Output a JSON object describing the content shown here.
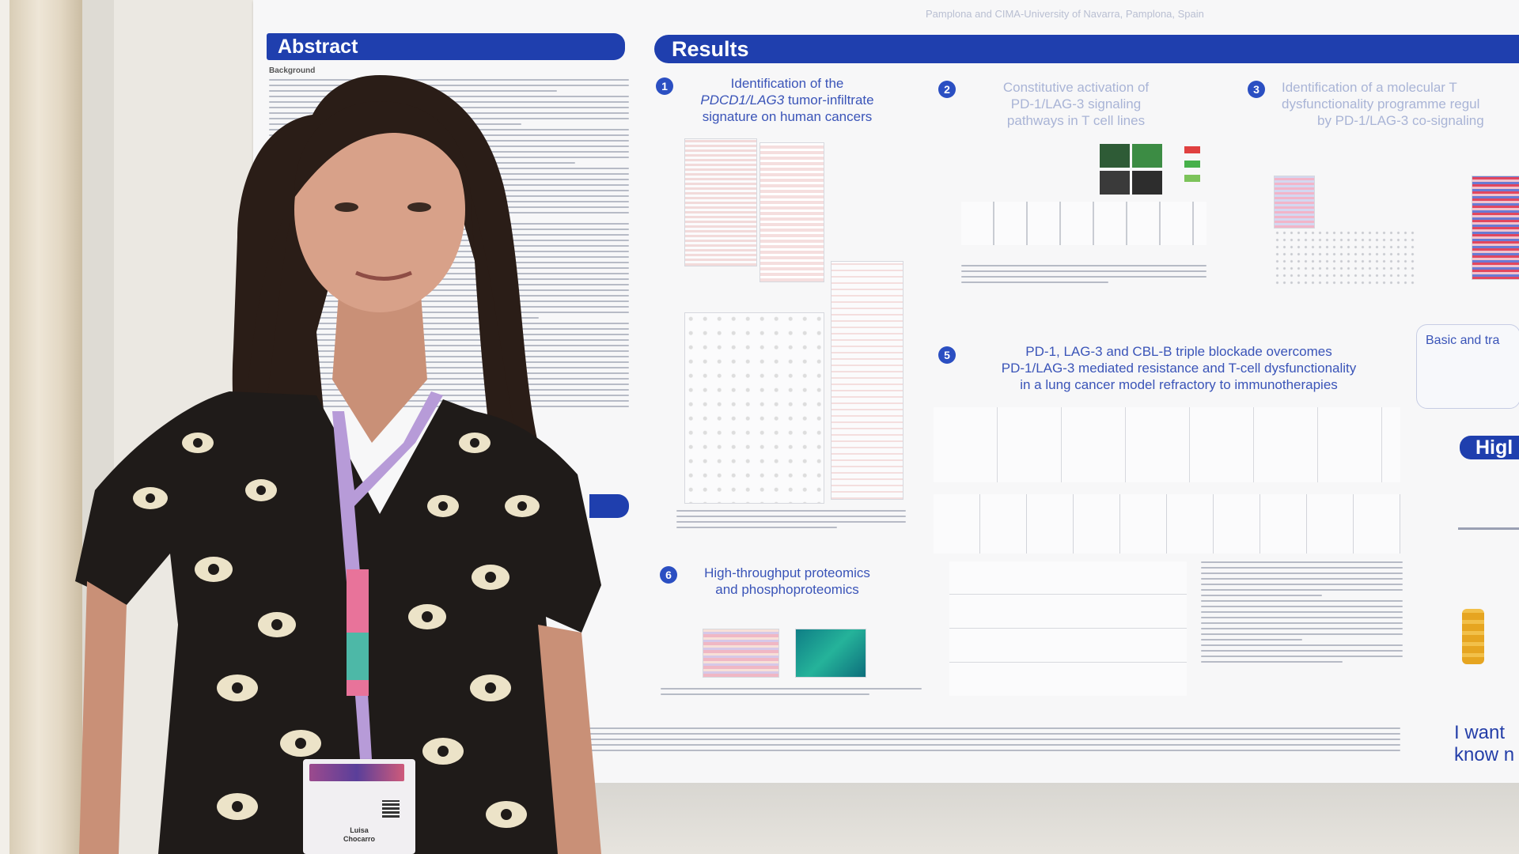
{
  "poster": {
    "top_faint_text": "Pamplona and CIMA-University of Navarra, Pamplona, Spain",
    "abstract_heading": "Abstract",
    "abstract_first_line": "Background",
    "results_heading": "Results",
    "panel1": {
      "number": "1",
      "title_line1": "Identification of the",
      "title_line2_em": "PDCD1/LAG3",
      "title_line2_rest": " tumor-infiltrate",
      "title_line3": "signature on human cancers"
    },
    "panel2": {
      "number": "2",
      "title_line1": "Constitutive activation of",
      "title_line2": "PD-1/LAG-3 signaling",
      "title_line3": "pathways in T cell lines"
    },
    "panel3": {
      "number": "3",
      "title_line1": "Identification of a molecular T",
      "title_line2": "dysfunctionality programme regul",
      "title_line3": "by PD-1/LAG-3 co-signaling"
    },
    "panel5": {
      "number": "5",
      "title_line1": "PD-1, LAG-3 and CBL-B triple blockade overcomes",
      "title_line2": "PD-1/LAG-3 mediated resistance and T-cell dysfunctionality",
      "title_line3": "in a lung cancer model refractory to immunotherapies"
    },
    "panel6": {
      "number": "6",
      "title_line1": "High-throughput proteomics",
      "title_line2": "and phosphoproteomics"
    },
    "side_box_title": "Basic and tra",
    "side_heading": "Higl",
    "bottom_right_line1": "I want",
    "bottom_right_line2": "know n"
  },
  "badge": {
    "name_line1": "Luisa",
    "name_line2": "Chocarro"
  },
  "colors": {
    "accent_blue": "#1f3fae",
    "poster_bg": "#f7f7f8",
    "wall": "#ebe8e2"
  }
}
